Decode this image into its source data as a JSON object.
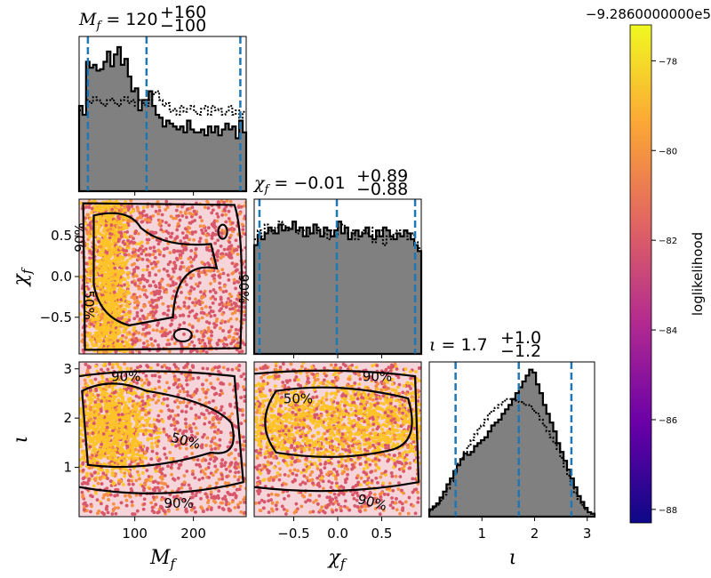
{
  "chart_data": {
    "type": "scatter",
    "subtype": "corner-plot",
    "parameters": [
      {
        "key": "Mf",
        "label_base": "M",
        "label_sub": "f",
        "range": [
          5,
          290
        ],
        "ticks": [
          100,
          200
        ],
        "tick_labels": [
          "100",
          "200"
        ],
        "median": 120,
        "lower": 20,
        "upper": 280,
        "title": {
          "text": "M_f = 120^{+160}_{-100}",
          "base": "M",
          "sub": "f",
          "value": "120",
          "plus": "+160",
          "minus": "−100"
        }
      },
      {
        "key": "chif",
        "label_base": "χ",
        "label_sub": "f",
        "range": [
          -0.95,
          0.95
        ],
        "ticks": [
          -0.5,
          0.0,
          0.5
        ],
        "tick_labels": [
          "−0.5",
          "0.0",
          "0.5"
        ],
        "median": -0.01,
        "lower": -0.89,
        "upper": 0.88,
        "title": {
          "text": "χ_f = −0.01^{+0.89}_{−0.88}",
          "base": "χ",
          "sub": "f",
          "value": "−0.01",
          "plus": "+0.89",
          "minus": "−0.88"
        }
      },
      {
        "key": "iota",
        "label_base": "ι",
        "label_sub": "",
        "range": [
          0.0,
          3.14
        ],
        "ticks": [
          1,
          2,
          3
        ],
        "tick_labels": [
          "1",
          "2",
          "3"
        ],
        "median": 1.7,
        "lower": 0.5,
        "upper": 2.7,
        "title": {
          "text": "ι = 1.7^{+1.0}_{−1.2}",
          "base": "ι",
          "sub": "",
          "value": "1.7",
          "plus": "+1.0",
          "minus": "−1.2"
        }
      }
    ],
    "histograms": [
      {
        "key": "Mf",
        "solid": [
          0.58,
          0.52,
          0.88,
          0.84,
          0.86,
          0.82,
          0.83,
          0.88,
          0.95,
          0.85,
          0.93,
          0.98,
          0.86,
          0.9,
          0.78,
          0.68,
          0.7,
          0.55,
          0.62,
          0.62,
          0.68,
          0.58,
          0.52,
          0.5,
          0.44,
          0.48,
          0.46,
          0.44,
          0.42,
          0.44,
          0.4,
          0.48,
          0.42,
          0.4,
          0.4,
          0.42,
          0.38,
          0.44,
          0.4,
          0.44,
          0.38,
          0.42,
          0.46,
          0.42,
          0.44,
          0.36,
          0.48,
          0.4
        ],
        "dotted": [
          0.55,
          0.58,
          0.62,
          0.6,
          0.64,
          0.62,
          0.6,
          0.58,
          0.62,
          0.63,
          0.6,
          0.58,
          0.62,
          0.64,
          0.6,
          0.62,
          0.58,
          0.62,
          0.6,
          0.58,
          0.62,
          0.66,
          0.68,
          0.62,
          0.58,
          0.6,
          0.54,
          0.56,
          0.52,
          0.58,
          0.54,
          0.56,
          0.58,
          0.54,
          0.52,
          0.56,
          0.58,
          0.52,
          0.58,
          0.55,
          0.56,
          0.52,
          0.54,
          0.58,
          0.52,
          0.55,
          0.5,
          0.54
        ]
      },
      {
        "key": "chif",
        "solid": [
          0.74,
          0.8,
          0.78,
          0.82,
          0.86,
          0.84,
          0.82,
          0.88,
          0.84,
          0.86,
          0.85,
          0.9,
          0.84,
          0.86,
          0.8,
          0.86,
          0.82,
          0.88,
          0.84,
          0.8,
          0.86,
          0.84,
          0.8,
          0.84,
          0.9,
          0.82,
          0.86,
          0.78,
          0.82,
          0.84,
          0.8,
          0.82,
          0.86,
          0.8,
          0.78,
          0.84,
          0.8,
          0.86,
          0.84,
          0.8,
          0.78,
          0.82,
          0.8,
          0.84,
          0.82,
          0.78,
          0.74,
          0.7
        ],
        "dotted": [
          0.78,
          0.84,
          0.8,
          0.88,
          0.84,
          0.82,
          0.86,
          0.9,
          0.88,
          0.84,
          0.86,
          0.88,
          0.82,
          0.86,
          0.84,
          0.8,
          0.84,
          0.82,
          0.86,
          0.8,
          0.82,
          0.78,
          0.84,
          0.8,
          0.86,
          0.88,
          0.82,
          0.8,
          0.84,
          0.78,
          0.8,
          0.84,
          0.82,
          0.86,
          0.76,
          0.8,
          0.84,
          0.74,
          0.8,
          0.78,
          0.82,
          0.84,
          0.8,
          0.84,
          0.78,
          0.82,
          0.76,
          0.72
        ]
      },
      {
        "key": "iota",
        "solid": [
          0.05,
          0.07,
          0.09,
          0.13,
          0.17,
          0.22,
          0.26,
          0.31,
          0.35,
          0.39,
          0.43,
          0.42,
          0.44,
          0.48,
          0.5,
          0.52,
          0.54,
          0.58,
          0.62,
          0.64,
          0.66,
          0.7,
          0.73,
          0.76,
          0.8,
          0.84,
          0.88,
          0.92,
          0.96,
          1.0,
          0.98,
          0.9,
          0.84,
          0.76,
          0.7,
          0.64,
          0.58,
          0.5,
          0.44,
          0.38,
          0.32,
          0.26,
          0.2,
          0.14,
          0.1,
          0.06,
          0.03,
          0.02
        ],
        "dotted": [
          0.04,
          0.06,
          0.08,
          0.11,
          0.15,
          0.19,
          0.24,
          0.3,
          0.36,
          0.4,
          0.44,
          0.48,
          0.52,
          0.56,
          0.6,
          0.62,
          0.66,
          0.7,
          0.72,
          0.74,
          0.76,
          0.78,
          0.8,
          0.8,
          0.8,
          0.79,
          0.78,
          0.77,
          0.76,
          0.75,
          0.72,
          0.7,
          0.66,
          0.62,
          0.58,
          0.54,
          0.5,
          0.46,
          0.4,
          0.34,
          0.28,
          0.22,
          0.16,
          0.12,
          0.08,
          0.05,
          0.03,
          0.02
        ]
      }
    ],
    "contours": {
      "levels": [
        "50%",
        "90%"
      ],
      "label_positions": {
        "chif_vs_Mf": [
          {
            "text": "90%",
            "rotation": -90
          },
          {
            "text": "50%",
            "rotation": 90
          },
          {
            "text": "90%",
            "rotation": 90
          }
        ],
        "iota_vs_Mf": [
          {
            "text": "90%",
            "rotation": 0
          },
          {
            "text": "50%",
            "rotation": 15
          },
          {
            "text": "90%",
            "rotation": 0
          }
        ],
        "iota_vs_chif": [
          {
            "text": "50%",
            "rotation": 0
          },
          {
            "text": "90%",
            "rotation": 0
          },
          {
            "text": "90%",
            "rotation": 15
          }
        ]
      }
    },
    "colorbar": {
      "label": "loglikelihood",
      "offset_text": "−9.2860000000e5",
      "range": [
        -88.3,
        -77.2
      ],
      "ticks": [
        -78,
        -80,
        -82,
        -84,
        -86,
        -88
      ],
      "tick_labels": [
        "−78",
        "−80",
        "−82",
        "−84",
        "−86",
        "−88"
      ],
      "colormap": "plasma",
      "colors": [
        "#0d0887",
        "#6a00a8",
        "#b12a90",
        "#e16462",
        "#fca636",
        "#f0f921"
      ]
    },
    "colors": {
      "hist_fill": "#808080",
      "credible_line": "#1f77b4",
      "contour": "#000000",
      "scatter_low": "#d8576b",
      "scatter_mid": "#f68e44",
      "scatter_high": "#fdc328"
    }
  }
}
